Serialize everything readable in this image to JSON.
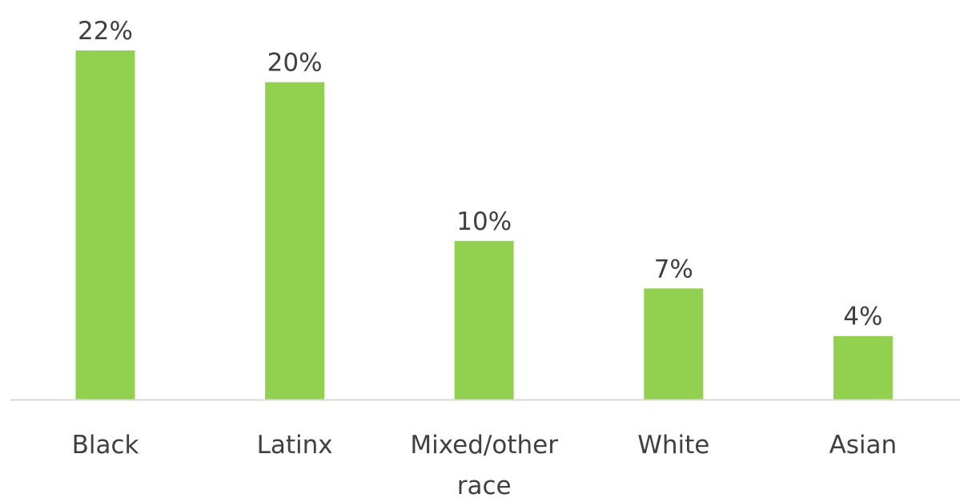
{
  "chart_data": {
    "type": "bar",
    "categories": [
      "Black",
      "Latinx",
      "Mixed/other race",
      "White",
      "Asian"
    ],
    "category_lines": [
      [
        "Black"
      ],
      [
        "Latinx"
      ],
      [
        "Mixed/other",
        "race"
      ],
      [
        "White"
      ],
      [
        "Asian"
      ]
    ],
    "values": [
      22,
      20,
      10,
      7,
      4
    ],
    "value_labels": [
      "22%",
      "20%",
      "10%",
      "7%",
      "4%"
    ],
    "title": "",
    "xlabel": "",
    "ylabel": "",
    "ylim": [
      0,
      22
    ],
    "grid": false,
    "legend": "none",
    "colors": {
      "bar": "#92d050",
      "axis": "#d9d9d9",
      "text": "#404040"
    }
  }
}
